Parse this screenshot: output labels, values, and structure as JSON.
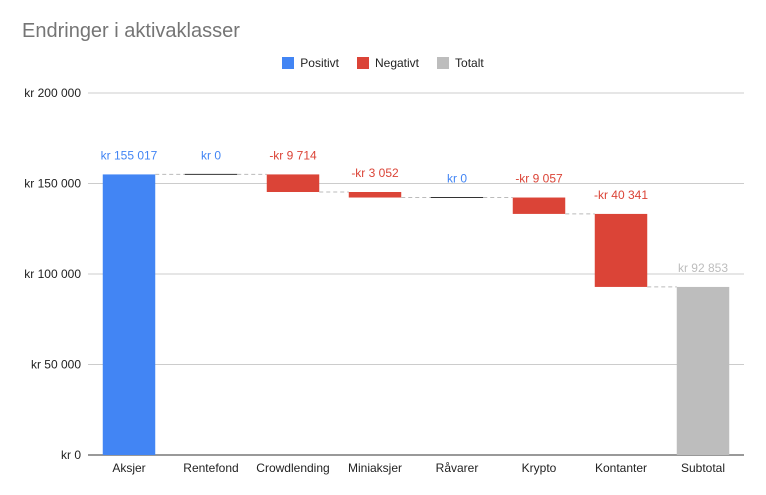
{
  "title": "Endringer i aktivaklasser",
  "legend": [
    {
      "label": "Positivt",
      "color": "#4285f4"
    },
    {
      "label": "Negativt",
      "color": "#db4437"
    },
    {
      "label": "Totalt",
      "color": "#bdbdbd"
    }
  ],
  "chart_data": {
    "type": "bar",
    "subtype": "waterfall",
    "title": "Endringer i aktivaklasser",
    "ylim": [
      0,
      200000
    ],
    "yticks": [
      {
        "value": 0,
        "label": "kr 0"
      },
      {
        "value": 50000,
        "label": "kr 50 000"
      },
      {
        "value": 100000,
        "label": "kr 100 000"
      },
      {
        "value": 150000,
        "label": "kr 150 000"
      },
      {
        "value": 200000,
        "label": "kr 200 000"
      }
    ],
    "grid": true,
    "legend_position": "top",
    "categories": [
      "Aksjer",
      "Rentefond",
      "Crowdlending",
      "Miniaksjer",
      "Råvarer",
      "Krypto",
      "Kontanter",
      "Subtotal"
    ],
    "values": [
      155017,
      0,
      -9714,
      -3052,
      0,
      -9057,
      -40341,
      92853
    ],
    "kinds": [
      "positive",
      "positive",
      "negative",
      "negative",
      "positive",
      "negative",
      "negative",
      "total"
    ],
    "data_labels": [
      "kr 155 017",
      "kr 0",
      "-kr 9 714",
      "-kr 3 052",
      "kr 0",
      "-kr 9 057",
      "-kr 40 341",
      "kr 92 853"
    ],
    "colors": {
      "positive": "#4285f4",
      "negative": "#db4437",
      "total": "#bdbdbd"
    }
  }
}
